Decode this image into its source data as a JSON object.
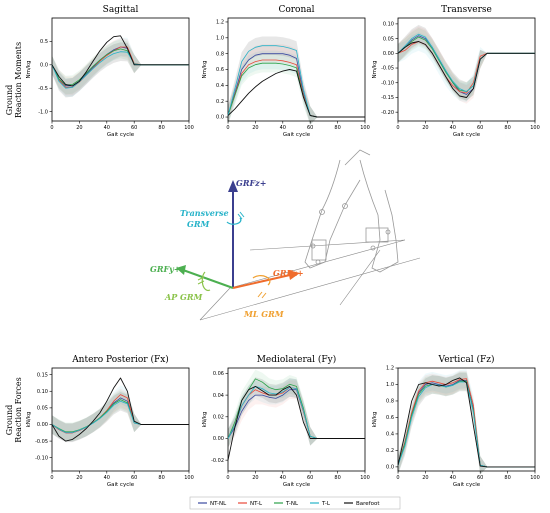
{
  "row_labels": {
    "top": [
      "Ground",
      "Reaction Moments"
    ],
    "bottom": [
      "Ground",
      "Reaction Forces"
    ]
  },
  "colors": {
    "NT-NL": "#3b4aa0",
    "NT-L": "#e8483a",
    "T-NL": "#2ba24a",
    "T-L": "#27b3c9",
    "Barefoot": "#111111"
  },
  "legend": [
    "NT-NL",
    "NT-L",
    "T-NL",
    "T-L",
    "Barefoot"
  ],
  "diagram": {
    "grfz": "GRFz+",
    "transverse_grm": [
      "Transverse",
      "GRM"
    ],
    "grfy": "GRFy+",
    "ap_grm": "AP GRM",
    "grfx": "GRFx+",
    "ml_grm": "ML GRM"
  },
  "chart_data": [
    {
      "id": "sagittal",
      "type": "line",
      "title": "Sagittal",
      "xlabel": "Gait cycle",
      "ylabel": "Nm/kg",
      "xlim": [
        0,
        100
      ],
      "ylim": [
        -1.2,
        1.0
      ],
      "xticks": [
        0,
        20,
        40,
        60,
        80,
        100
      ],
      "yticks": [
        -1.0,
        -0.5,
        0.0,
        0.5
      ],
      "ytick_labels": [
        "-1.0",
        "-0.5",
        "0.0",
        "0.5"
      ],
      "x": [
        0,
        5,
        10,
        15,
        20,
        25,
        30,
        35,
        40,
        45,
        50,
        55,
        60,
        65,
        70,
        75,
        80,
        85,
        90,
        95,
        100
      ],
      "series": [
        {
          "name": "NT-NL",
          "values": [
            0,
            -0.3,
            -0.45,
            -0.45,
            -0.35,
            -0.2,
            -0.05,
            0.1,
            0.22,
            0.32,
            0.38,
            0.35,
            0.02,
            0,
            0,
            0,
            0,
            0,
            0,
            0,
            0
          ]
        },
        {
          "name": "NT-L",
          "values": [
            0,
            -0.32,
            -0.48,
            -0.48,
            -0.37,
            -0.22,
            -0.07,
            0.08,
            0.2,
            0.3,
            0.38,
            0.38,
            0.03,
            0,
            0,
            0,
            0,
            0,
            0,
            0,
            0
          ]
        },
        {
          "name": "T-NL",
          "values": [
            0,
            -0.3,
            -0.43,
            -0.42,
            -0.32,
            -0.18,
            -0.03,
            0.1,
            0.22,
            0.3,
            0.34,
            0.3,
            0.02,
            0,
            0,
            0,
            0,
            0,
            0,
            0,
            0
          ]
        },
        {
          "name": "T-L",
          "values": [
            0,
            -0.35,
            -0.5,
            -0.48,
            -0.36,
            -0.22,
            -0.08,
            0.05,
            0.16,
            0.24,
            0.28,
            0.27,
            0.02,
            0,
            0,
            0,
            0,
            0,
            0,
            0,
            0
          ]
        },
        {
          "name": "Barefoot",
          "values": [
            0,
            -0.25,
            -0.42,
            -0.45,
            -0.35,
            -0.15,
            0.08,
            0.3,
            0.48,
            0.6,
            0.62,
            0.35,
            0.0,
            0,
            0,
            0,
            0,
            0,
            0,
            0,
            0
          ]
        }
      ]
    },
    {
      "id": "coronal",
      "type": "line",
      "title": "Coronal",
      "xlabel": "Gait cycle",
      "ylabel": "Nm/kg",
      "xlim": [
        0,
        100
      ],
      "ylim": [
        -0.05,
        1.25
      ],
      "xticks": [
        0,
        20,
        40,
        60,
        80,
        100
      ],
      "yticks": [
        0.0,
        0.2,
        0.4,
        0.6,
        0.8,
        1.0,
        1.2
      ],
      "ytick_labels": [
        "0.0",
        "0.2",
        "0.4",
        "0.6",
        "0.8",
        "1.0",
        "1.2"
      ],
      "x": [
        0,
        5,
        10,
        15,
        20,
        25,
        30,
        35,
        40,
        45,
        50,
        55,
        60,
        65,
        70,
        75,
        80,
        85,
        90,
        95,
        100
      ],
      "series": [
        {
          "name": "NT-NL",
          "values": [
            0.02,
            0.3,
            0.6,
            0.72,
            0.78,
            0.8,
            0.8,
            0.8,
            0.8,
            0.78,
            0.74,
            0.3,
            0.02,
            0,
            0,
            0,
            0,
            0,
            0,
            0,
            0
          ]
        },
        {
          "name": "NT-L",
          "values": [
            0.02,
            0.28,
            0.55,
            0.66,
            0.7,
            0.72,
            0.72,
            0.72,
            0.71,
            0.69,
            0.66,
            0.28,
            0.02,
            0,
            0,
            0,
            0,
            0,
            0,
            0,
            0
          ]
        },
        {
          "name": "T-NL",
          "values": [
            0.02,
            0.27,
            0.52,
            0.62,
            0.66,
            0.68,
            0.68,
            0.68,
            0.67,
            0.65,
            0.62,
            0.26,
            0.02,
            0,
            0,
            0,
            0,
            0,
            0,
            0,
            0
          ]
        },
        {
          "name": "T-L",
          "values": [
            0.02,
            0.35,
            0.7,
            0.83,
            0.88,
            0.9,
            0.9,
            0.9,
            0.89,
            0.87,
            0.84,
            0.35,
            0.02,
            0,
            0,
            0,
            0,
            0,
            0,
            0,
            0
          ]
        },
        {
          "name": "Barefoot",
          "values": [
            0.02,
            0.1,
            0.2,
            0.3,
            0.38,
            0.45,
            0.5,
            0.55,
            0.58,
            0.6,
            0.58,
            0.25,
            0.02,
            0,
            0,
            0,
            0,
            0,
            0,
            0,
            0
          ]
        }
      ]
    },
    {
      "id": "transverse",
      "type": "line",
      "title": "Transverse",
      "xlabel": "Gait cycle",
      "ylabel": "Nm/kg",
      "xlim": [
        0,
        100
      ],
      "ylim": [
        -0.23,
        0.12
      ],
      "xticks": [
        0,
        20,
        40,
        60,
        80,
        100
      ],
      "yticks": [
        -0.2,
        -0.15,
        -0.1,
        -0.05,
        0.0,
        0.05,
        0.1
      ],
      "ytick_labels": [
        "-0.20",
        "-0.15",
        "-0.10",
        "-0.05",
        "0.00",
        "0.05",
        "0.10"
      ],
      "x": [
        0,
        5,
        10,
        15,
        20,
        25,
        30,
        35,
        40,
        45,
        50,
        55,
        60,
        65,
        70,
        75,
        80,
        85,
        90,
        95,
        100
      ],
      "series": [
        {
          "name": "NT-NL",
          "values": [
            0,
            0.02,
            0.045,
            0.06,
            0.05,
            0.02,
            -0.02,
            -0.06,
            -0.1,
            -0.13,
            -0.14,
            -0.12,
            -0.02,
            0,
            0,
            0,
            0,
            0,
            0,
            0,
            0
          ]
        },
        {
          "name": "NT-L",
          "values": [
            0,
            0.01,
            0.03,
            0.04,
            0.03,
            0.0,
            -0.04,
            -0.08,
            -0.11,
            -0.13,
            -0.135,
            -0.1,
            -0.01,
            0,
            0,
            0,
            0,
            0,
            0,
            0,
            0
          ]
        },
        {
          "name": "T-NL",
          "values": [
            0,
            0.02,
            0.04,
            0.055,
            0.045,
            0.015,
            -0.025,
            -0.065,
            -0.1,
            -0.125,
            -0.13,
            -0.11,
            -0.02,
            0,
            0,
            0,
            0,
            0,
            0,
            0,
            0
          ]
        },
        {
          "name": "T-L",
          "values": [
            0,
            0.025,
            0.05,
            0.065,
            0.055,
            0.02,
            -0.02,
            -0.06,
            -0.095,
            -0.12,
            -0.13,
            -0.11,
            -0.02,
            0,
            0,
            0,
            0,
            0,
            0,
            0,
            0
          ]
        },
        {
          "name": "Barefoot",
          "values": [
            0,
            0.02,
            0.035,
            0.04,
            0.03,
            0.0,
            -0.04,
            -0.08,
            -0.12,
            -0.145,
            -0.15,
            -0.12,
            -0.02,
            0,
            0,
            0,
            0,
            0,
            0,
            0,
            0
          ]
        }
      ]
    },
    {
      "id": "antero-posterior",
      "type": "line",
      "title": "Antero Posterior (Fx)",
      "xlabel": "Gait cycle",
      "ylabel": "kN/kg",
      "xlim": [
        0,
        100
      ],
      "ylim": [
        -0.14,
        0.17
      ],
      "xticks": [
        0,
        20,
        40,
        60,
        80,
        100
      ],
      "yticks": [
        -0.1,
        -0.05,
        0.0,
        0.05,
        0.1,
        0.15
      ],
      "ytick_labels": [
        "-0.10",
        "-0.05",
        "0.00",
        "0.05",
        "0.10",
        "0.15"
      ],
      "x": [
        0,
        5,
        10,
        15,
        20,
        25,
        30,
        35,
        40,
        45,
        50,
        55,
        60,
        65,
        70,
        75,
        80,
        85,
        90,
        95,
        100
      ],
      "series": [
        {
          "name": "NT-NL",
          "values": [
            0,
            -0.015,
            -0.025,
            -0.025,
            -0.018,
            -0.008,
            0.005,
            0.02,
            0.04,
            0.065,
            0.08,
            0.07,
            0.005,
            0,
            0,
            0,
            0,
            0,
            0,
            0,
            0
          ]
        },
        {
          "name": "NT-L",
          "values": [
            0,
            -0.015,
            -0.025,
            -0.025,
            -0.018,
            -0.008,
            0.005,
            0.02,
            0.042,
            0.07,
            0.09,
            0.08,
            0.005,
            0,
            0,
            0,
            0,
            0,
            0,
            0,
            0
          ]
        },
        {
          "name": "T-NL",
          "values": [
            0,
            -0.012,
            -0.022,
            -0.022,
            -0.016,
            -0.007,
            0.005,
            0.02,
            0.04,
            0.062,
            0.075,
            0.065,
            0.005,
            0,
            0,
            0,
            0,
            0,
            0,
            0,
            0
          ]
        },
        {
          "name": "T-L",
          "values": [
            0,
            -0.014,
            -0.024,
            -0.024,
            -0.017,
            -0.008,
            0.004,
            0.018,
            0.036,
            0.058,
            0.07,
            0.062,
            0.005,
            0,
            0,
            0,
            0,
            0,
            0,
            0,
            0
          ]
        },
        {
          "name": "Barefoot",
          "values": [
            0,
            -0.035,
            -0.05,
            -0.045,
            -0.03,
            -0.012,
            0.01,
            0.035,
            0.07,
            0.11,
            0.14,
            0.1,
            0.01,
            0,
            0,
            0,
            0,
            0,
            0,
            0,
            0
          ]
        }
      ]
    },
    {
      "id": "mediolateral",
      "type": "line",
      "title": "Mediolateral (Fy)",
      "xlabel": "Gait cycle",
      "ylabel": "kN/kg",
      "xlim": [
        0,
        100
      ],
      "ylim": [
        -0.03,
        0.065
      ],
      "xticks": [
        0,
        20,
        40,
        60,
        80,
        100
      ],
      "yticks": [
        -0.02,
        0.0,
        0.02,
        0.04,
        0.06
      ],
      "ytick_labels": [
        "-0.02",
        "0.00",
        "0.02",
        "0.04",
        "0.06"
      ],
      "x": [
        0,
        5,
        10,
        15,
        20,
        25,
        30,
        35,
        40,
        45,
        50,
        55,
        60,
        65,
        70,
        75,
        80,
        85,
        90,
        95,
        100
      ],
      "series": [
        {
          "name": "NT-NL",
          "values": [
            0,
            0.01,
            0.025,
            0.035,
            0.04,
            0.04,
            0.038,
            0.037,
            0.04,
            0.045,
            0.045,
            0.025,
            0.002,
            0,
            0,
            0,
            0,
            0,
            0,
            0,
            0
          ]
        },
        {
          "name": "NT-L",
          "values": [
            0,
            0.012,
            0.03,
            0.04,
            0.045,
            0.042,
            0.04,
            0.04,
            0.042,
            0.047,
            0.046,
            0.025,
            0.002,
            0,
            0,
            0,
            0,
            0,
            0,
            0,
            0
          ]
        },
        {
          "name": "T-NL",
          "values": [
            0,
            0.015,
            0.035,
            0.045,
            0.055,
            0.052,
            0.047,
            0.045,
            0.046,
            0.05,
            0.048,
            0.028,
            0.002,
            0,
            0,
            0,
            0,
            0,
            0,
            0,
            0
          ]
        },
        {
          "name": "T-L",
          "values": [
            0,
            0.012,
            0.03,
            0.04,
            0.048,
            0.046,
            0.042,
            0.041,
            0.043,
            0.047,
            0.046,
            0.026,
            0.002,
            0,
            0,
            0,
            0,
            0,
            0,
            0,
            0
          ]
        },
        {
          "name": "Barefoot",
          "values": [
            -0.02,
            0.01,
            0.035,
            0.045,
            0.048,
            0.044,
            0.04,
            0.04,
            0.045,
            0.048,
            0.04,
            0.015,
            0.0,
            0,
            0,
            0,
            0,
            0,
            0,
            0,
            0
          ]
        }
      ]
    },
    {
      "id": "vertical",
      "type": "line",
      "title": "Vertical (Fz)",
      "xlabel": "Gait cycle",
      "ylabel": "kN/kg",
      "xlim": [
        0,
        100
      ],
      "ylim": [
        -0.05,
        1.2
      ],
      "xticks": [
        0,
        20,
        40,
        60,
        80,
        100
      ],
      "yticks": [
        0.0,
        0.2,
        0.4,
        0.6,
        0.8,
        1.0,
        1.2
      ],
      "ytick_labels": [
        "0.0",
        "0.2",
        "0.4",
        "0.6",
        "0.8",
        "1.0",
        "1.2"
      ],
      "x": [
        0,
        5,
        10,
        15,
        20,
        25,
        30,
        35,
        40,
        45,
        50,
        55,
        60,
        65,
        70,
        75,
        80,
        85,
        90,
        95,
        100
      ],
      "series": [
        {
          "name": "NT-NL",
          "values": [
            0.02,
            0.3,
            0.65,
            0.9,
            1.0,
            1.02,
            1.0,
            0.98,
            1.0,
            1.05,
            1.05,
            0.7,
            0.02,
            0,
            0,
            0,
            0,
            0,
            0,
            0,
            0
          ]
        },
        {
          "name": "NT-L",
          "values": [
            0.02,
            0.3,
            0.66,
            0.92,
            1.02,
            1.04,
            1.02,
            1.0,
            1.02,
            1.06,
            1.07,
            0.75,
            0.02,
            0,
            0,
            0,
            0,
            0,
            0,
            0,
            0
          ]
        },
        {
          "name": "T-NL",
          "values": [
            0.02,
            0.28,
            0.63,
            0.88,
            0.98,
            1.0,
            0.99,
            0.97,
            0.99,
            1.04,
            1.04,
            0.68,
            0.02,
            0,
            0,
            0,
            0,
            0,
            0,
            0,
            0
          ]
        },
        {
          "name": "T-L",
          "values": [
            0.02,
            0.25,
            0.6,
            0.85,
            0.96,
            1.0,
            0.99,
            0.97,
            0.99,
            1.03,
            1.03,
            0.66,
            0.02,
            0,
            0,
            0,
            0,
            0,
            0,
            0,
            0
          ]
        },
        {
          "name": "Barefoot",
          "values": [
            0.02,
            0.4,
            0.8,
            1.0,
            1.02,
            1.0,
            0.98,
            1.0,
            1.05,
            1.08,
            1.02,
            0.5,
            0.01,
            0,
            0,
            0,
            0,
            0,
            0,
            0,
            0
          ]
        }
      ]
    }
  ]
}
